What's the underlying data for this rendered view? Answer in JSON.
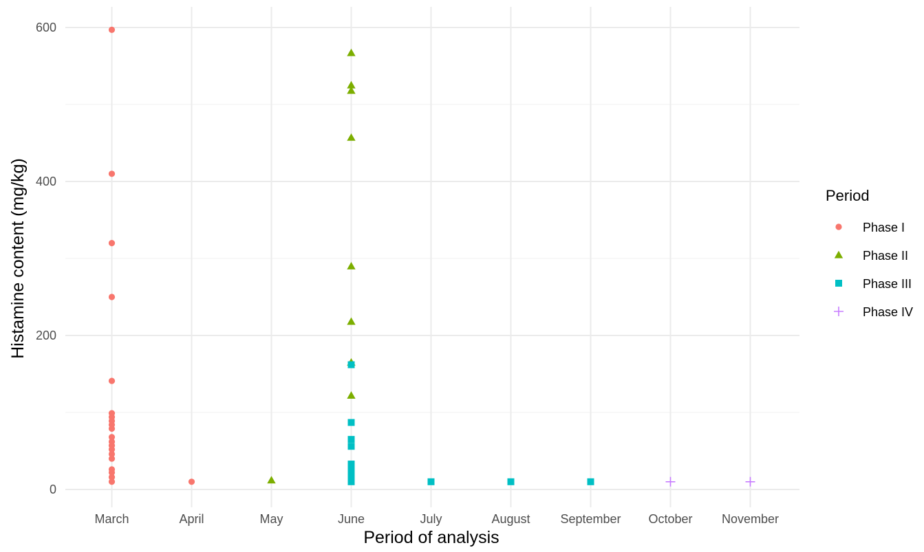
{
  "chart_data": {
    "type": "scatter",
    "xlabel": "Period of analysis",
    "ylabel": "Histamine content (mg/kg)",
    "categories": [
      "March",
      "April",
      "May",
      "June",
      "July",
      "August",
      "September",
      "October",
      "November"
    ],
    "ylim": [
      -20,
      630
    ],
    "yticks": [
      0,
      200,
      400,
      600
    ],
    "y_minor_ticks": [
      100,
      300,
      500
    ],
    "grid": true,
    "legend": {
      "title": "Period",
      "placement": "right"
    },
    "series": [
      {
        "name": "Phase I",
        "marker": "circle",
        "color": "#F8766D",
        "points": [
          [
            "March",
            597
          ],
          [
            "March",
            410
          ],
          [
            "March",
            320
          ],
          [
            "March",
            250
          ],
          [
            "March",
            141
          ],
          [
            "March",
            99
          ],
          [
            "March",
            94
          ],
          [
            "March",
            89
          ],
          [
            "March",
            84
          ],
          [
            "March",
            79
          ],
          [
            "March",
            68
          ],
          [
            "March",
            62
          ],
          [
            "March",
            57
          ],
          [
            "March",
            52
          ],
          [
            "March",
            46
          ],
          [
            "March",
            40
          ],
          [
            "March",
            26
          ],
          [
            "March",
            22
          ],
          [
            "March",
            16
          ],
          [
            "March",
            10
          ],
          [
            "April",
            10
          ]
        ]
      },
      {
        "name": "Phase II",
        "marker": "triangle",
        "color": "#7CAE00",
        "points": [
          [
            "May",
            12
          ],
          [
            "June",
            567
          ],
          [
            "June",
            525
          ],
          [
            "June",
            518
          ],
          [
            "June",
            457
          ],
          [
            "June",
            290
          ],
          [
            "June",
            218
          ],
          [
            "June",
            165
          ],
          [
            "June",
            122
          ]
        ]
      },
      {
        "name": "Phase III",
        "marker": "square",
        "color": "#00BFC4",
        "points": [
          [
            "June",
            162
          ],
          [
            "June",
            87
          ],
          [
            "June",
            65
          ],
          [
            "June",
            56
          ],
          [
            "June",
            33
          ],
          [
            "June",
            28
          ],
          [
            "June",
            24
          ],
          [
            "June",
            19
          ],
          [
            "June",
            14
          ],
          [
            "June",
            10
          ],
          [
            "July",
            10
          ],
          [
            "August",
            10
          ],
          [
            "September",
            10
          ]
        ]
      },
      {
        "name": "Phase IV",
        "marker": "plus",
        "color": "#C77CFF",
        "points": [
          [
            "October",
            10
          ],
          [
            "November",
            10
          ]
        ]
      }
    ]
  }
}
